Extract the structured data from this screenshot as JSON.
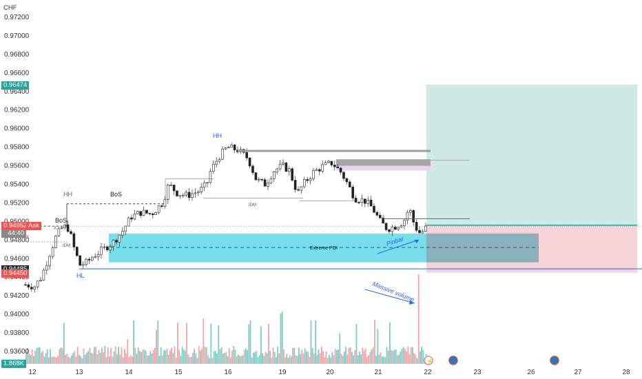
{
  "currency_label": "CHF",
  "volume_label": "1.868K",
  "price_tags": {
    "target": "0.96474",
    "last": "0.94952",
    "ask_label": "Ask",
    "countdown": "44:40",
    "level_a": "0.94485",
    "stop": "0.94450"
  },
  "annotations": {
    "hh_left": "HH",
    "hh_top": "HH",
    "hl": "HL",
    "bos_1": "BoS",
    "bos_2": "BoS",
    "idm_1": "IDM",
    "idm_2": "IDM",
    "extreme_poi": "Extreme POI",
    "pinbar": "Pinbar",
    "massive_volume": "Massive volume",
    "x_mark": "x"
  },
  "colors": {
    "up": "#26a69a",
    "down": "#ef5350",
    "poi_zone": "#5fd8e8",
    "target_zone": "#cfeae4",
    "stop_zone": "#f7d2d6",
    "annotation_blue": "#2962ff",
    "hh_text": "#2962ff"
  },
  "chart_data": {
    "type": "candlestick",
    "y_axis": {
      "label": "CHF",
      "ticks": [
        "0.97200",
        "0.97000",
        "0.96800",
        "0.96600",
        "0.96400",
        "0.96200",
        "0.96000",
        "0.95800",
        "0.95600",
        "0.95400",
        "0.95200",
        "0.95000",
        "0.94800",
        "0.94600",
        "0.94400",
        "0.94200",
        "0.94000",
        "0.93800",
        "0.93600"
      ],
      "range": [
        0.9346,
        0.9734
      ]
    },
    "x_axis": {
      "ticks": [
        "12",
        "13",
        "14",
        "15",
        "16",
        "19",
        "20",
        "21",
        "22",
        "23",
        "26",
        "27",
        "28"
      ]
    },
    "levels": {
      "entry": 0.9495,
      "take_profit": 0.96474,
      "stop_loss": 0.9445,
      "poi_zone": [
        0.9456,
        0.9487
      ],
      "lower_line": 0.9449,
      "upper_line_1": 0.9576,
      "upper_line_2": 0.9503
    },
    "candle_count": 133,
    "candle_trend_note": "",
    "volume_max_label": "1.868K"
  }
}
